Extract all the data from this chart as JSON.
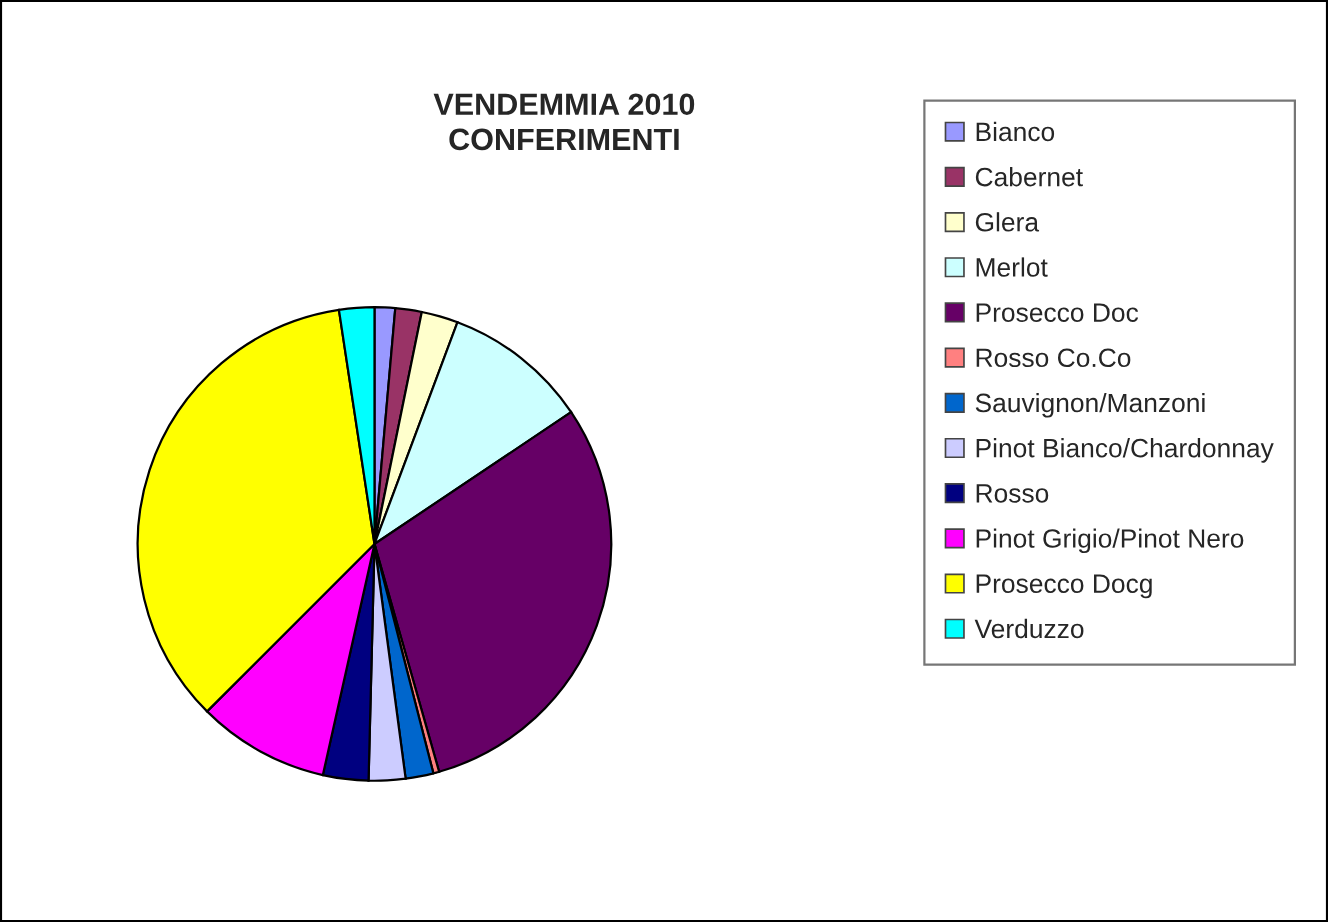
{
  "chart_data": {
    "type": "pie",
    "title": "VENDEMMIA 2010\nCONFERIMENTI",
    "categories": [
      "Bianco",
      "Cabernet",
      "Glera",
      "Merlot",
      "Prosecco Doc",
      "Rosso Co.Co",
      "Sauvignon/Manzoni",
      "Pinot Bianco/Chardonnay",
      "Rosso",
      "Pinot Grigio/Pinot Nero",
      "Prosecco Docg",
      "Verduzzo"
    ],
    "values": [
      1.4,
      1.8,
      2.5,
      9.9,
      30.0,
      0.4,
      1.9,
      2.5,
      3.1,
      9.0,
      35.1,
      2.4
    ],
    "colors": [
      "#9999ff",
      "#993366",
      "#ffffcc",
      "#ccffff",
      "#660066",
      "#ff8080",
      "#0066cc",
      "#ccccff",
      "#000080",
      "#ff00ff",
      "#ffff00",
      "#00ffff"
    ],
    "legend": "right"
  }
}
